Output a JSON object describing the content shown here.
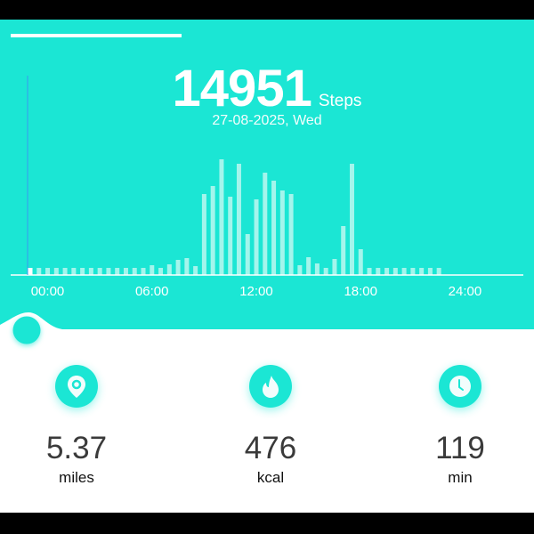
{
  "header": {
    "steps": "14951",
    "steps_unit": "Steps",
    "date": "27-08-2025, Wed"
  },
  "colors": {
    "accent": "#1be6d4",
    "bar": "#a4f5ec",
    "selected_bar": "#ffffff",
    "cursor": "#3a9bf0"
  },
  "chart_data": {
    "type": "bar",
    "x_tick_labels": [
      "00:00",
      "06:00",
      "12:00",
      "18:00",
      "24:00"
    ],
    "x_range": [
      0,
      24
    ],
    "bar_interval_hours": 0.5,
    "selected_index": 0,
    "values": [
      8,
      8,
      8,
      8,
      8,
      8,
      8,
      8,
      8,
      8,
      8,
      8,
      8,
      8,
      11,
      8,
      12,
      17,
      19,
      10,
      91,
      100,
      130,
      88,
      125,
      46,
      85,
      115,
      106,
      95,
      91,
      11,
      20,
      13,
      8,
      18,
      55,
      125,
      29,
      8,
      8,
      8,
      8,
      8,
      8,
      8,
      8,
      8
    ],
    "grid": false,
    "y_axis_shown": false
  },
  "stats": [
    {
      "icon": "location-pin-icon",
      "value": "5.37",
      "unit": "miles"
    },
    {
      "icon": "flame-icon",
      "value": "476",
      "unit": "kcal"
    },
    {
      "icon": "clock-icon",
      "value": "119",
      "unit": "min"
    }
  ]
}
